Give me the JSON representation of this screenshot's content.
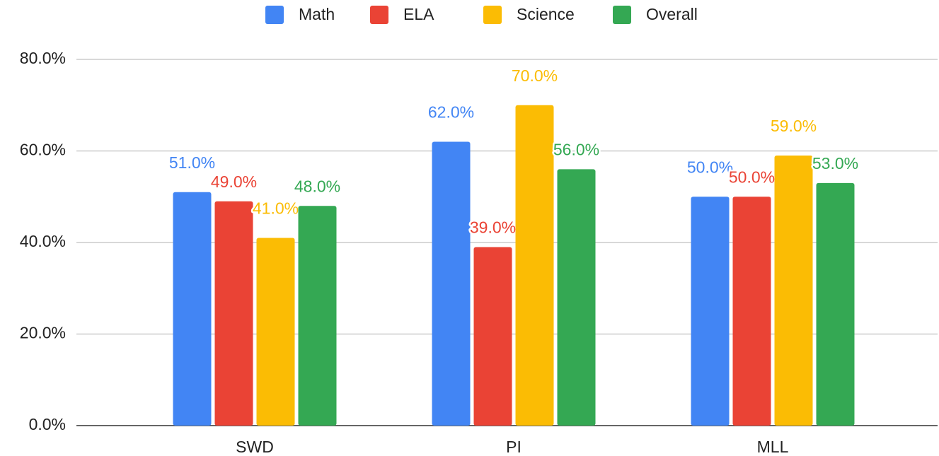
{
  "chart_data": {
    "type": "bar",
    "categories": [
      "SWD",
      "PI",
      "MLL"
    ],
    "series": [
      {
        "name": "Math",
        "color": "#4285f4",
        "values": [
          51,
          62,
          50
        ],
        "value_labels": [
          "51.0%",
          "62.0%",
          "50.0%"
        ]
      },
      {
        "name": "ELA",
        "color": "#ea4335",
        "values": [
          49,
          39,
          50
        ],
        "value_labels": [
          "49.0%",
          "39.0%",
          "50.0%"
        ]
      },
      {
        "name": "Science",
        "color": "#fbbc04",
        "values": [
          41,
          70,
          59
        ],
        "value_labels": [
          "41.0%",
          "70.0%",
          "59.0%"
        ]
      },
      {
        "name": "Overall",
        "color": "#34a853",
        "values": [
          48,
          56,
          53
        ],
        "value_labels": [
          "48.0%",
          "56.0%",
          "53.0%"
        ]
      }
    ],
    "ylim": [
      0,
      80
    ],
    "yticks": [
      {
        "value": 0,
        "label": "0.0%"
      },
      {
        "value": 20,
        "label": "20.0%"
      },
      {
        "value": 40,
        "label": "40.0%"
      },
      {
        "value": 60,
        "label": "60.0%"
      },
      {
        "value": 80,
        "label": "80.0%"
      }
    ],
    "grid": true,
    "legend": "top"
  }
}
